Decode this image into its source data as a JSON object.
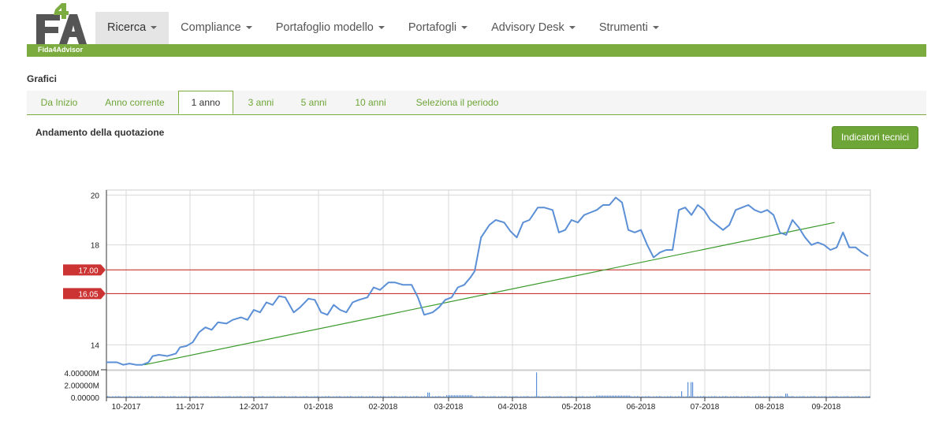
{
  "brand": {
    "logo_text": "F4A",
    "tagline": "Fida4Advisor"
  },
  "nav": {
    "items": [
      {
        "label": "Ricerca",
        "active": true
      },
      {
        "label": "Compliance"
      },
      {
        "label": "Portafoglio modello"
      },
      {
        "label": "Portafogli"
      },
      {
        "label": "Advisory Desk"
      },
      {
        "label": "Strumenti"
      }
    ]
  },
  "page": {
    "section_title": "Grafici",
    "chart_title": "Andamento della quotazione",
    "indicators_button": "Indicatori tecnici"
  },
  "tabs": [
    {
      "label": "Da Inizio"
    },
    {
      "label": "Anno corrente"
    },
    {
      "label": "1 anno",
      "active": true
    },
    {
      "label": "3 anni"
    },
    {
      "label": "5 anni"
    },
    {
      "label": "10 anni"
    },
    {
      "label": "Seleziona il periodo"
    }
  ],
  "colors": {
    "accent": "#7cac3f",
    "price_line": "#5b8fd6",
    "trend_line": "#3a9a2a",
    "level_line": "#cc3333",
    "volume": "#5b8fd6"
  },
  "chart_data": {
    "type": "line",
    "x_ticks": [
      "10-2017",
      "11-2017",
      "12-2017",
      "01-2018",
      "02-2018",
      "03-2018",
      "04-2018",
      "05-2018",
      "06-2018",
      "07-2018",
      "08-2018",
      "09-2018"
    ],
    "y_ticks": [
      "20",
      "18",
      "14"
    ],
    "ylim": [
      13.0,
      20.2
    ],
    "price_series": [
      [
        "2017-09-29",
        13.3
      ],
      [
        "2017-10-04",
        13.3
      ],
      [
        "2017-10-07",
        13.2
      ],
      [
        "2017-10-10",
        13.25
      ],
      [
        "2017-10-13",
        13.2
      ],
      [
        "2017-10-16",
        13.2
      ],
      [
        "2017-10-19",
        13.3
      ],
      [
        "2017-10-21",
        13.55
      ],
      [
        "2017-10-24",
        13.6
      ],
      [
        "2017-10-28",
        13.55
      ],
      [
        "2017-11-01",
        13.65
      ],
      [
        "2017-11-03",
        13.9
      ],
      [
        "2017-11-06",
        13.95
      ],
      [
        "2017-11-09",
        14.1
      ],
      [
        "2017-11-12",
        14.5
      ],
      [
        "2017-11-15",
        14.7
      ],
      [
        "2017-11-18",
        14.6
      ],
      [
        "2017-11-21",
        14.9
      ],
      [
        "2017-11-25",
        14.85
      ],
      [
        "2017-11-28",
        15.0
      ],
      [
        "2017-12-02",
        15.1
      ],
      [
        "2017-12-05",
        15.0
      ],
      [
        "2017-12-08",
        15.4
      ],
      [
        "2017-12-11",
        15.3
      ],
      [
        "2017-12-14",
        15.7
      ],
      [
        "2017-12-17",
        15.6
      ],
      [
        "2017-12-20",
        15.95
      ],
      [
        "2017-12-23",
        15.9
      ],
      [
        "2017-12-27",
        15.3
      ],
      [
        "2017-12-30",
        15.5
      ],
      [
        "2018-01-03",
        15.85
      ],
      [
        "2018-01-06",
        15.8
      ],
      [
        "2018-01-09",
        15.3
      ],
      [
        "2018-01-12",
        15.2
      ],
      [
        "2018-01-15",
        15.6
      ],
      [
        "2018-01-18",
        15.4
      ],
      [
        "2018-01-21",
        15.3
      ],
      [
        "2018-01-24",
        15.7
      ],
      [
        "2018-01-27",
        15.8
      ],
      [
        "2018-01-31",
        15.9
      ],
      [
        "2018-02-03",
        16.3
      ],
      [
        "2018-02-06",
        16.2
      ],
      [
        "2018-02-10",
        16.5
      ],
      [
        "2018-02-13",
        16.5
      ],
      [
        "2018-02-17",
        16.4
      ],
      [
        "2018-02-21",
        16.4
      ],
      [
        "2018-02-24",
        15.9
      ],
      [
        "2018-02-27",
        15.2
      ],
      [
        "2018-03-03",
        15.3
      ],
      [
        "2018-03-06",
        15.5
      ],
      [
        "2018-03-09",
        15.8
      ],
      [
        "2018-03-12",
        15.9
      ],
      [
        "2018-03-15",
        16.3
      ],
      [
        "2018-03-18",
        16.4
      ],
      [
        "2018-03-21",
        16.7
      ],
      [
        "2018-03-23",
        16.95
      ],
      [
        "2018-03-26",
        18.3
      ],
      [
        "2018-03-30",
        18.8
      ],
      [
        "2018-04-02",
        19.0
      ],
      [
        "2018-04-06",
        18.9
      ],
      [
        "2018-04-09",
        18.55
      ],
      [
        "2018-04-12",
        18.3
      ],
      [
        "2018-04-15",
        18.9
      ],
      [
        "2018-04-18",
        19.0
      ],
      [
        "2018-04-22",
        19.5
      ],
      [
        "2018-04-25",
        19.5
      ],
      [
        "2018-04-29",
        19.4
      ],
      [
        "2018-05-02",
        18.5
      ],
      [
        "2018-05-05",
        18.6
      ],
      [
        "2018-05-08",
        19.0
      ],
      [
        "2018-05-11",
        18.9
      ],
      [
        "2018-05-14",
        19.2
      ],
      [
        "2018-05-17",
        19.3
      ],
      [
        "2018-05-20",
        19.4
      ],
      [
        "2018-05-23",
        19.6
      ],
      [
        "2018-05-26",
        19.6
      ],
      [
        "2018-05-29",
        19.9
      ],
      [
        "2018-06-01",
        19.7
      ],
      [
        "2018-06-04",
        18.6
      ],
      [
        "2018-06-07",
        18.5
      ],
      [
        "2018-06-10",
        18.6
      ],
      [
        "2018-06-13",
        18.0
      ],
      [
        "2018-06-16",
        17.5
      ],
      [
        "2018-06-19",
        17.7
      ],
      [
        "2018-06-22",
        17.8
      ],
      [
        "2018-06-25",
        17.8
      ],
      [
        "2018-06-28",
        19.4
      ],
      [
        "2018-07-01",
        19.5
      ],
      [
        "2018-07-04",
        19.2
      ],
      [
        "2018-07-07",
        19.6
      ],
      [
        "2018-07-10",
        19.4
      ],
      [
        "2018-07-13",
        19.0
      ],
      [
        "2018-07-16",
        18.8
      ],
      [
        "2018-07-19",
        18.6
      ],
      [
        "2018-07-22",
        18.8
      ],
      [
        "2018-07-25",
        19.4
      ],
      [
        "2018-07-28",
        19.5
      ],
      [
        "2018-07-31",
        19.6
      ],
      [
        "2018-08-03",
        19.4
      ],
      [
        "2018-08-06",
        19.3
      ],
      [
        "2018-08-09",
        19.4
      ],
      [
        "2018-08-12",
        19.2
      ],
      [
        "2018-08-15",
        18.5
      ],
      [
        "2018-08-18",
        18.4
      ],
      [
        "2018-08-21",
        19.0
      ],
      [
        "2018-08-24",
        18.7
      ],
      [
        "2018-08-27",
        18.3
      ],
      [
        "2018-08-30",
        18.0
      ],
      [
        "2018-09-02",
        18.1
      ],
      [
        "2018-09-05",
        18.0
      ],
      [
        "2018-09-08",
        17.8
      ],
      [
        "2018-09-11",
        17.9
      ],
      [
        "2018-09-14",
        18.5
      ],
      [
        "2018-09-17",
        17.9
      ],
      [
        "2018-09-20",
        17.9
      ],
      [
        "2018-09-23",
        17.7
      ],
      [
        "2018-09-26",
        17.55
      ]
    ],
    "trend_line": [
      [
        "2017-10-17",
        13.2
      ],
      [
        "2018-09-10",
        18.9
      ]
    ],
    "levels": [
      {
        "label": "17.00",
        "value": 17.0
      },
      {
        "label": "16.05",
        "value": 16.05
      }
    ],
    "volume_ticks": [
      "4.00000M",
      "2.00000M",
      "0.00000"
    ],
    "volume_peaks": [
      [
        "2018-03-01",
        0.8
      ],
      [
        "2018-04-21",
        4.1
      ],
      [
        "2018-06-29",
        1.0
      ],
      [
        "2018-07-02",
        2.5
      ],
      [
        "2018-07-04",
        2.5
      ],
      [
        "2018-08-18",
        0.6
      ]
    ],
    "grid": true
  }
}
